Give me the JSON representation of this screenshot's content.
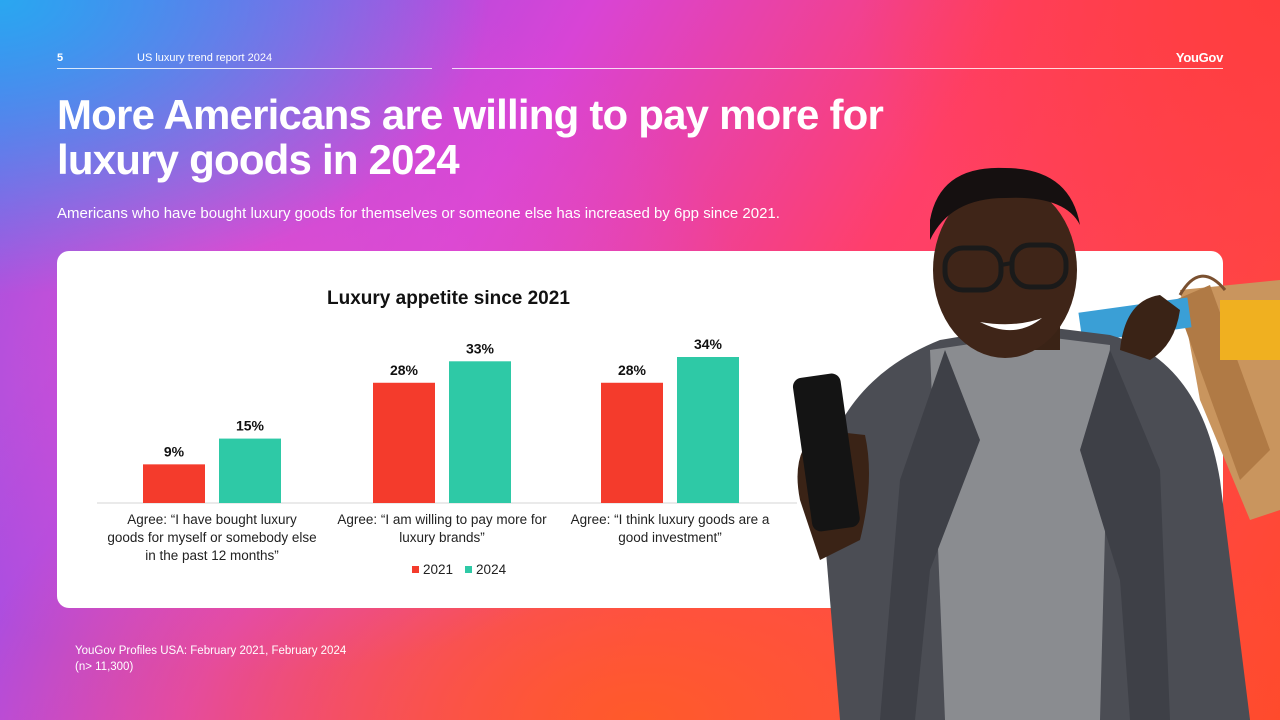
{
  "header": {
    "page_number": "5",
    "report_name": "US luxury trend report 2024",
    "brand": "YouGov"
  },
  "headline": "More Americans are willing to pay more for luxury goods in 2024",
  "subhead": "Americans who have bought luxury goods for themselves or someone else has increased by 6pp since 2021.",
  "chart_data": {
    "type": "bar",
    "title": "Luxury appetite since 2021",
    "categories": [
      "Agree: “I have bought luxury goods for myself or somebody else in the past 12 months”",
      "Agree: “I am willing to pay more for luxury brands”",
      "Agree: “I think luxury goods are a good investment”"
    ],
    "series": [
      {
        "name": "2021",
        "color": "#f43b2c",
        "values": [
          9,
          28,
          28
        ],
        "labels": [
          "9%",
          "28%",
          "28%"
        ]
      },
      {
        "name": "2024",
        "color": "#2ec9a6",
        "values": [
          15,
          33,
          34
        ],
        "labels": [
          "15%",
          "33%",
          "34%"
        ]
      }
    ],
    "ylim": [
      0,
      34
    ],
    "grid": false,
    "legend_position": "bottom-center"
  },
  "footer": {
    "source_line1": "YouGov Profiles USA: February 2021, February 2024",
    "source_line2": "(n> 11,300)"
  },
  "colors": {
    "accent_2021": "#f43b2c",
    "accent_2024": "#2ec9a6"
  }
}
